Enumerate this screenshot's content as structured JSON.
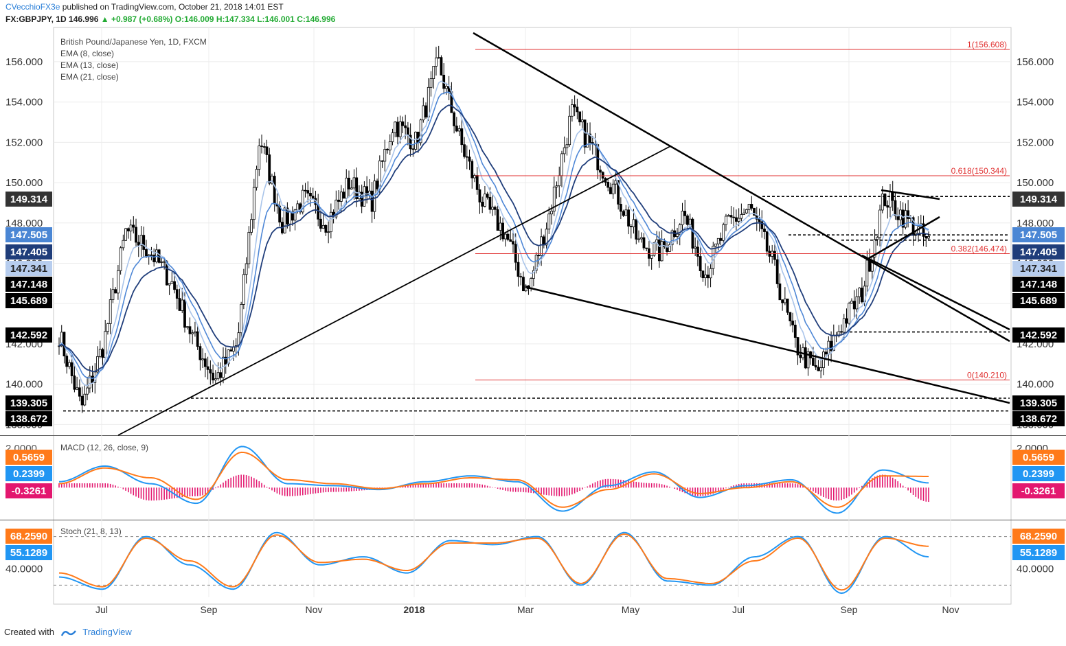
{
  "header": {
    "publisher": "CVecchioFX3e",
    "published_text": "published on TradingView.com, October 21, 2018 14:01 EST",
    "symbol": "FX:GBPJPY, 1D",
    "last": "146.996",
    "change": "+0.987 (+0.68%)",
    "open": "O:146.009",
    "high": "H:147.334",
    "low": "L:146.001",
    "close": "C:146.996"
  },
  "legend": {
    "instrument": "British Pound/Japanese Yen, 1D, FXCM",
    "ema1": "EMA (8, close)",
    "ema2": "EMA (13, close)",
    "ema3": "EMA (21, close)",
    "macd": "MACD (12, 26, close, 9)",
    "stoch": "Stoch (21, 8, 13)"
  },
  "footer": {
    "created_with": "Created with",
    "brand": "TradingView"
  },
  "colors": {
    "ema8": "#a9c4ea",
    "ema13": "#4e87d6",
    "ema21": "#1f3d7a",
    "macd_line": "#2196f3",
    "macd_signal": "#ff7a1a",
    "macd_hist": "#e3176f",
    "fib": "#e03030",
    "trend": "#000000"
  },
  "chart_data": [
    {
      "type": "candlestick",
      "title": "British Pound/Japanese Yen, 1D, FXCM",
      "x_tick_labels": [
        "Jul",
        "Sep",
        "Nov",
        "2018",
        "Mar",
        "May",
        "Jul",
        "Sep",
        "Nov"
      ],
      "ylim": [
        137.5,
        157.7
      ],
      "y_tick_labels": [
        "138.000",
        "140.000",
        "142.000",
        "144.000",
        "146.000",
        "148.000",
        "150.000",
        "152.000",
        "154.000",
        "156.000"
      ],
      "price_marks_left": [
        {
          "label": "149.314",
          "value": 149.314
        },
        {
          "label": "147.505",
          "value": 147.505
        },
        {
          "label": "147.405",
          "value": 147.405
        },
        {
          "label": "147.341",
          "value": 147.341
        },
        {
          "label": "147.148",
          "value": 147.148
        },
        {
          "label": "145.689",
          "value": 145.689
        },
        {
          "label": "142.592",
          "value": 142.592
        },
        {
          "label": "139.305",
          "value": 139.305
        },
        {
          "label": "138.672",
          "value": 138.672
        }
      ],
      "price_marks_right": [
        {
          "label": "149.314",
          "value": 149.314
        },
        {
          "label": "147.505",
          "value": 147.505
        },
        {
          "label": "147.405",
          "value": 147.405
        },
        {
          "label": "147.341",
          "value": 147.341
        },
        {
          "label": "147.148",
          "value": 147.148
        },
        {
          "label": "145.689",
          "value": 145.689
        },
        {
          "label": "142.592",
          "value": 142.592
        },
        {
          "label": "139.305",
          "value": 139.305
        },
        {
          "label": "138.672",
          "value": 138.672
        }
      ],
      "fib_levels": [
        {
          "label": "1(156.608)",
          "value": 156.608
        },
        {
          "label": "0.618(150.344)",
          "value": 150.344
        },
        {
          "label": "0.382(146.474)",
          "value": 146.474
        },
        {
          "label": "0(140.210)",
          "value": 140.21
        }
      ],
      "price_path": [
        142.5,
        138.8,
        142.0,
        147.6,
        146.7,
        145.2,
        142.3,
        140.2,
        142.0,
        152.3,
        148.0,
        149.2,
        148.0,
        150.0,
        149.0,
        153.0,
        152.0,
        156.0,
        152.0,
        149.0,
        147.5,
        144.5,
        148.5,
        153.5,
        151.5,
        149.5,
        147.0,
        146.5,
        148.5,
        145.5,
        148.0,
        148.7,
        146.0,
        142.0,
        140.5,
        142.8,
        144.5,
        149.3,
        148.2,
        147.0
      ]
    },
    {
      "type": "line",
      "title": "MACD (12, 26, close, 9)",
      "ylim": [
        -1.6,
        2.6
      ],
      "y_tick_labels": [
        "2.0000"
      ],
      "last_values": [
        {
          "label": "0.5659",
          "value": 0.5659
        },
        {
          "label": "0.2399",
          "value": 0.2399
        },
        {
          "label": "-0.3261",
          "value": -0.3261
        }
      ],
      "series": [
        {
          "name": "MACD",
          "values": [
            0.3,
            1.1,
            0.2,
            -0.8,
            2.1,
            0.2,
            0.1,
            -0.1,
            0.3,
            0.6,
            0.3,
            -1.2,
            0.1,
            0.8,
            -0.5,
            0.1,
            0.4,
            -1.3,
            0.9,
            0.24
          ]
        },
        {
          "name": "Signal",
          "values": [
            0.2,
            1.0,
            0.5,
            -0.6,
            1.8,
            0.4,
            0.2,
            -0.05,
            0.2,
            0.5,
            0.4,
            -1.0,
            -0.1,
            0.7,
            -0.3,
            0.0,
            0.3,
            -1.0,
            0.6,
            0.57
          ]
        }
      ]
    },
    {
      "type": "line",
      "title": "Stoch (21, 8, 13)",
      "ylim": [
        5,
        100
      ],
      "y_tick_labels": [
        "40.0000"
      ],
      "last_values": [
        {
          "label": "68.2590",
          "value": 68.259
        },
        {
          "label": "55.1289",
          "value": 55.1289
        }
      ],
      "series": [
        {
          "name": "%K",
          "values": [
            30,
            15,
            80,
            45,
            15,
            85,
            45,
            55,
            35,
            75,
            70,
            80,
            20,
            85,
            25,
            20,
            55,
            80,
            10,
            80,
            55
          ]
        },
        {
          "name": "%D",
          "values": [
            35,
            18,
            78,
            50,
            18,
            82,
            48,
            52,
            38,
            72,
            72,
            78,
            22,
            83,
            28,
            22,
            50,
            78,
            14,
            78,
            68
          ]
        }
      ]
    }
  ]
}
